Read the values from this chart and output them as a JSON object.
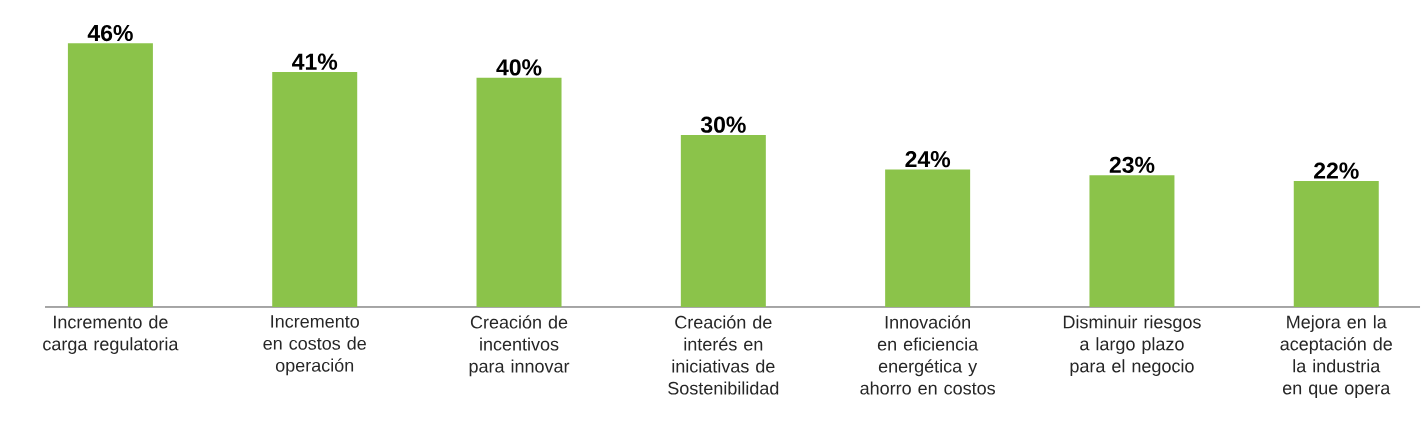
{
  "chart_data": {
    "type": "bar",
    "categories": [
      "Incremento de carga regulatoria",
      "Incremento en costos de operación",
      "Creación de incentivos para innovar",
      "Creación de interés en iniciativas de Sostenibilidad",
      "Innovación en eficiencia energética y ahorro en costos",
      "Disminuir riesgos a largo plazo para el negocio",
      "Mejora en la aceptación de la industria en que opera"
    ],
    "values": [
      46,
      41,
      40,
      30,
      24,
      23,
      22
    ],
    "value_labels": [
      "46%",
      "41%",
      "40%",
      "30%",
      "24%",
      "23%",
      "22%"
    ],
    "color": "#8bc34a"
  }
}
